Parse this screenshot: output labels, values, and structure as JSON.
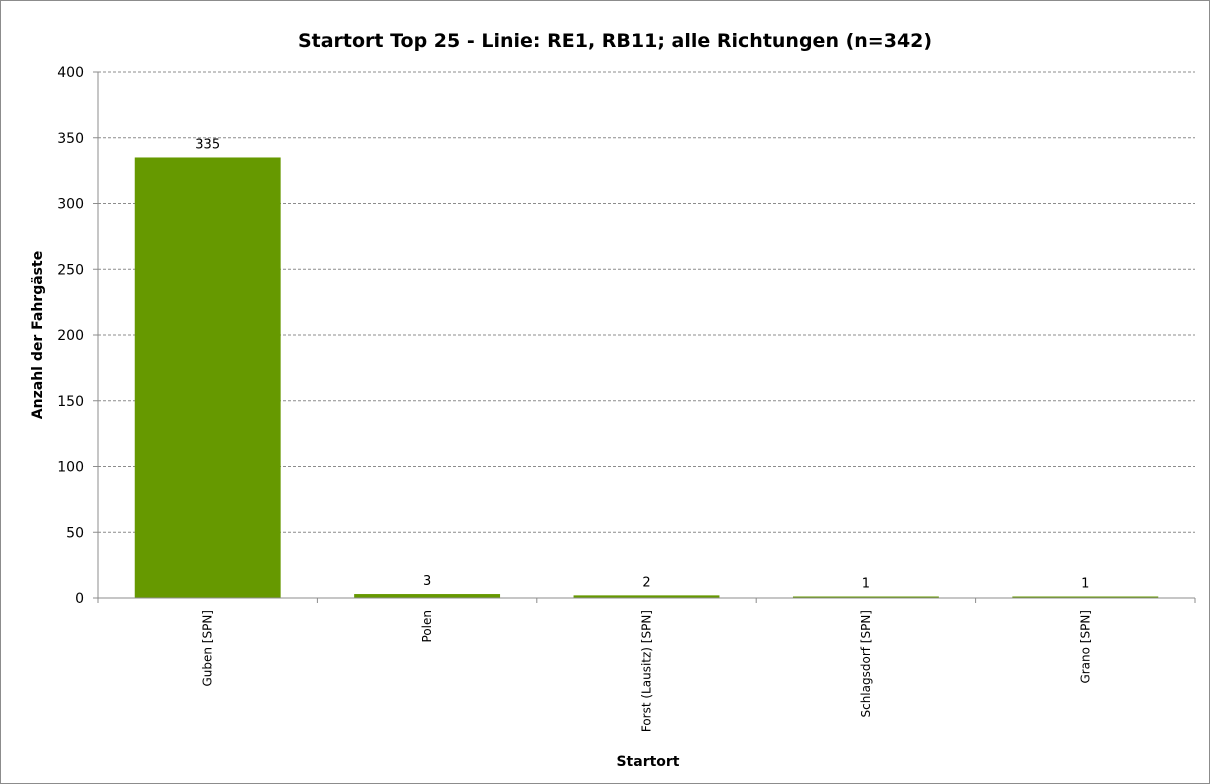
{
  "chart_data": {
    "type": "bar",
    "title": "Startort Top 25 - Linie: RE1, RB11; alle Richtungen (n=342)",
    "xlabel": "Startort",
    "ylabel": "Anzahl der Fahrgäste",
    "categories": [
      "Guben [SPN]",
      "Polen",
      "Forst (Lausitz) [SPN]",
      "Schlagsdorf [SPN]",
      "Grano [SPN]"
    ],
    "values": [
      335,
      3,
      2,
      1,
      1
    ],
    "data_labels": [
      "335",
      "3",
      "2",
      "1",
      "1"
    ],
    "ylim": [
      0,
      400
    ],
    "yticks": [
      0,
      50,
      100,
      150,
      200,
      250,
      300,
      350,
      400
    ],
    "grid": true,
    "legend": "none",
    "bar_color": "#669900"
  }
}
